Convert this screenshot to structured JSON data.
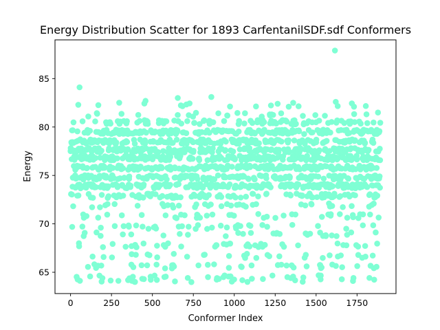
{
  "chart_data": {
    "type": "scatter",
    "title": "Energy Distribution Scatter for 1893 CarfentanilSDF.sdf Conformers",
    "xlabel": "Conformer Index",
    "ylabel": "Energy",
    "xlim": [
      -95,
      1988
    ],
    "ylim": [
      62.8,
      89.0
    ],
    "xticks": [
      0,
      250,
      500,
      750,
      1000,
      1250,
      1500,
      1750
    ],
    "yticks": [
      65,
      70,
      75,
      80,
      85
    ],
    "grid": false,
    "legend": "none",
    "n_points": 1893,
    "color": "#7fffd4",
    "band_levels": [
      64.2,
      64.5,
      65.6,
      66.7,
      67.8,
      68.9,
      69.7,
      70.8,
      71.9,
      72.9,
      73.9,
      74.8,
      75.8,
      76.8,
      77.6,
      78.5,
      79.5,
      80.5,
      81.3,
      82.3
    ],
    "outliers": [
      {
        "x": 55,
        "y": 84.1
      },
      {
        "x": 458,
        "y": 82.7
      },
      {
        "x": 655,
        "y": 83.0
      },
      {
        "x": 860,
        "y": 83.1
      },
      {
        "x": 1265,
        "y": 82.4
      },
      {
        "x": 1360,
        "y": 82.5
      },
      {
        "x": 1615,
        "y": 87.9
      },
      {
        "x": 1620,
        "y": 82.6
      }
    ]
  }
}
